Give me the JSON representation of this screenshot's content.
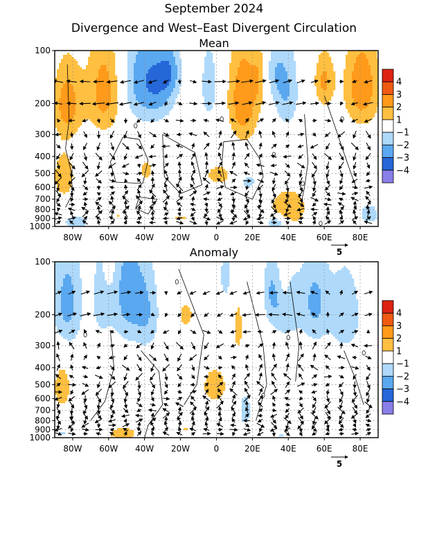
{
  "header": {
    "line1": "September 2024",
    "line2": "Divergence and West–East Divergent Circulation"
  },
  "colors": {
    "pos": [
      "#ffffff",
      "#ffbf40",
      "#ff9a1a",
      "#ee5a12",
      "#dd2211"
    ],
    "neg": [
      "#ffffff",
      "#aed9fb",
      "#5aa8f0",
      "#2566d8",
      "#8a7ee8"
    ]
  },
  "chart_data": [
    {
      "type": "heatmap",
      "title": "Mean",
      "x_ticks": [
        "80W",
        "60W",
        "40W",
        "20W",
        "0",
        "20E",
        "40E",
        "60E",
        "80E"
      ],
      "x_range_deg": [
        -90,
        90
      ],
      "y_ticks": [
        "100",
        "200",
        "300",
        "400",
        "500",
        "600",
        "700",
        "800",
        "900",
        "1000"
      ],
      "y_range_hPa": [
        100,
        1000
      ],
      "colorbar": [
        "4",
        "3",
        "2",
        "1",
        "−1",
        "−2",
        "−3",
        "−4"
      ],
      "vector_reference": "5",
      "blobs": [
        {
          "x": -83,
          "p": 200,
          "v": 2.5,
          "sx": 6,
          "sy": 70
        },
        {
          "x": -62,
          "p": 170,
          "v": 2.6,
          "sx": 7,
          "sy": 80
        },
        {
          "x": -41,
          "p": 150,
          "v": -2.6,
          "sx": 9,
          "sy": 70
        },
        {
          "x": -30,
          "p": 150,
          "v": -1.6,
          "sx": 6,
          "sy": 60
        },
        {
          "x": -25,
          "p": 130,
          "v": -1.4,
          "sx": 4,
          "sy": 30
        },
        {
          "x": -4,
          "p": 160,
          "v": -1.5,
          "sx": 4,
          "sy": 70
        },
        {
          "x": 15,
          "p": 190,
          "v": 2.9,
          "sx": 6,
          "sy": 90
        },
        {
          "x": 24,
          "p": 140,
          "v": 1.3,
          "sx": 3,
          "sy": 40
        },
        {
          "x": 39,
          "p": 170,
          "v": -2.0,
          "sx": 5,
          "sy": 70
        },
        {
          "x": 32,
          "p": 130,
          "v": -1.3,
          "sx": 4,
          "sy": 40
        },
        {
          "x": 60,
          "p": 150,
          "v": 2.2,
          "sx": 4,
          "sy": 40
        },
        {
          "x": 81,
          "p": 160,
          "v": 2.8,
          "sx": 7,
          "sy": 70
        },
        {
          "x": -85,
          "p": 520,
          "v": 1.6,
          "sx": 5,
          "sy": 130
        },
        {
          "x": -39,
          "p": 480,
          "v": 1.5,
          "sx": 3,
          "sy": 50
        },
        {
          "x": 1,
          "p": 510,
          "v": 1.7,
          "sx": 5,
          "sy": 50
        },
        {
          "x": 18,
          "p": 560,
          "v": -1.3,
          "sx": 4,
          "sy": 50
        },
        {
          "x": 40,
          "p": 790,
          "v": 1.8,
          "sx": 8,
          "sy": 150
        },
        {
          "x": 33,
          "p": 950,
          "v": -2.4,
          "sx": 4,
          "sy": 60
        },
        {
          "x": -78,
          "p": 950,
          "v": -1.6,
          "sx": 6,
          "sy": 70
        },
        {
          "x": -20,
          "p": 890,
          "v": 1.3,
          "sx": 4,
          "sy": 20
        },
        {
          "x": 85,
          "p": 850,
          "v": -1.3,
          "sx": 6,
          "sy": 120
        },
        {
          "x": -55,
          "p": 880,
          "v": 1.2,
          "sx": 2,
          "sy": 20
        }
      ],
      "contours": [
        [
          [
            -83,
            120
          ],
          [
            -82,
            250
          ],
          [
            -84,
            360
          ],
          [
            -81,
            480
          ],
          [
            -80,
            650
          ],
          [
            -84,
            780
          ]
        ],
        [
          [
            -52,
            310
          ],
          [
            -43,
            320
          ],
          [
            -38,
            420
          ],
          [
            -41,
            570
          ],
          [
            -56,
            560
          ],
          [
            -59,
            430
          ],
          [
            -52,
            310
          ]
        ],
        [
          [
            -30,
            300
          ],
          [
            -12,
            380
          ],
          [
            -8,
            580
          ],
          [
            -20,
            650
          ],
          [
            -29,
            520
          ],
          [
            -30,
            300
          ]
        ],
        [
          [
            4,
            330
          ],
          [
            17,
            320
          ],
          [
            24,
            410
          ],
          [
            26,
            520
          ],
          [
            20,
            700
          ],
          [
            5,
            600
          ],
          [
            3,
            450
          ],
          [
            4,
            330
          ]
        ],
        [
          [
            49,
            230
          ],
          [
            51,
            430
          ],
          [
            49,
            600
          ],
          [
            47,
            760
          ]
        ],
        [
          [
            60,
            180
          ],
          [
            67,
            290
          ],
          [
            73,
            440
          ],
          [
            78,
            610
          ]
        ],
        [
          [
            -43,
            680
          ],
          [
            -33,
            700
          ],
          [
            -38,
            850
          ],
          [
            -45,
            790
          ],
          [
            -43,
            680
          ]
        ]
      ],
      "zero_labels": [
        [
          -45,
          268
        ],
        [
          3,
          245
        ],
        [
          32,
          390
        ],
        [
          48,
          570
        ],
        [
          70,
          245
        ],
        [
          58,
          960
        ]
      ]
    },
    {
      "type": "heatmap",
      "title": "Anomaly",
      "x_ticks": [
        "80W",
        "60W",
        "40W",
        "20W",
        "0",
        "20E",
        "40E",
        "60E",
        "80E"
      ],
      "x_range_deg": [
        -90,
        90
      ],
      "y_ticks": [
        "100",
        "200",
        "300",
        "400",
        "500",
        "600",
        "700",
        "800",
        "900",
        "1000"
      ],
      "y_range_hPa": [
        100,
        1000
      ],
      "colorbar": [
        "4",
        "3",
        "2",
        "1",
        "−1",
        "−2",
        "−3",
        "−4"
      ],
      "vector_reference": "5",
      "blobs": [
        {
          "x": -83,
          "p": 170,
          "v": -2.4,
          "sx": 6,
          "sy": 90
        },
        {
          "x": -64,
          "p": 160,
          "v": -1.5,
          "sx": 4,
          "sy": 70
        },
        {
          "x": -49,
          "p": 150,
          "v": -2.5,
          "sx": 7,
          "sy": 90
        },
        {
          "x": -38,
          "p": 200,
          "v": -1.5,
          "sx": 5,
          "sy": 80
        },
        {
          "x": -60,
          "p": 110,
          "v": 1.4,
          "sx": 2,
          "sy": 20
        },
        {
          "x": -17,
          "p": 200,
          "v": 1.6,
          "sx": 3,
          "sy": 25
        },
        {
          "x": 12,
          "p": 240,
          "v": 1.6,
          "sx": 2,
          "sy": 60
        },
        {
          "x": 5,
          "p": 120,
          "v": -1.3,
          "sx": 3,
          "sy": 40
        },
        {
          "x": 30,
          "p": 140,
          "v": -1.4,
          "sx": 3,
          "sy": 50
        },
        {
          "x": 38,
          "p": 180,
          "v": -2.0,
          "sx": 6,
          "sy": 60
        },
        {
          "x": 55,
          "p": 170,
          "v": -2.2,
          "sx": 6,
          "sy": 80
        },
        {
          "x": 72,
          "p": 200,
          "v": -1.9,
          "sx": 6,
          "sy": 80
        },
        {
          "x": 38,
          "p": 120,
          "v": 1.3,
          "sx": 2,
          "sy": 30
        },
        {
          "x": -86,
          "p": 520,
          "v": 1.6,
          "sx": 4,
          "sy": 120
        },
        {
          "x": -1,
          "p": 510,
          "v": 1.8,
          "sx": 5,
          "sy": 90
        },
        {
          "x": 16,
          "p": 700,
          "v": -1.4,
          "sx": 3,
          "sy": 150
        },
        {
          "x": -52,
          "p": 950,
          "v": 1.8,
          "sx": 6,
          "sy": 60
        },
        {
          "x": 36,
          "p": 980,
          "v": -1.2,
          "sx": 3,
          "sy": 20
        },
        {
          "x": 66,
          "p": 980,
          "v": 1.2,
          "sx": 2,
          "sy": 15
        },
        {
          "x": -86,
          "p": 950,
          "v": -1.2,
          "sx": 3,
          "sy": 30
        },
        {
          "x": -17,
          "p": 900,
          "v": 1.2,
          "sx": 2,
          "sy": 15
        }
      ],
      "contours": [
        [
          [
            -59,
            250
          ],
          [
            -57,
            400
          ],
          [
            -62,
            620
          ],
          [
            -70,
            800
          ]
        ],
        [
          [
            -42,
            320
          ],
          [
            -32,
            420
          ],
          [
            -30,
            650
          ],
          [
            -38,
            850
          ],
          [
            -40,
            1000
          ]
        ],
        [
          [
            -21,
            110
          ],
          [
            -7,
            260
          ],
          [
            -11,
            500
          ],
          [
            -18,
            650
          ]
        ],
        [
          [
            17,
            130
          ],
          [
            26,
            300
          ],
          [
            28,
            500
          ],
          [
            22,
            800
          ]
        ],
        [
          [
            41,
            130
          ],
          [
            46,
            300
          ],
          [
            44,
            480
          ]
        ],
        [
          [
            71,
            320
          ],
          [
            78,
            480
          ],
          [
            82,
            650
          ]
        ]
      ],
      "zero_labels": [
        [
          -73,
          260
        ],
        [
          -22,
          130
        ],
        [
          40,
          270
        ],
        [
          82,
          330
        ],
        [
          26,
          575
        ]
      ]
    }
  ]
}
